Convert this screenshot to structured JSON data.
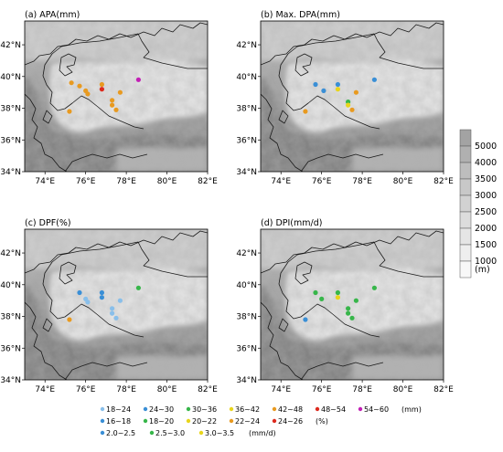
{
  "panels": [
    {
      "title": "(a) APA(mm)",
      "stations": [
        {
          "lon": 75.3,
          "lat": 39.6,
          "color": "#e89a20"
        },
        {
          "lon": 75.7,
          "lat": 39.4,
          "color": "#e89a20"
        },
        {
          "lon": 76.0,
          "lat": 39.1,
          "color": "#e89a20"
        },
        {
          "lon": 76.1,
          "lat": 38.9,
          "color": "#e89a20"
        },
        {
          "lon": 76.8,
          "lat": 39.5,
          "color": "#e89a20"
        },
        {
          "lon": 76.8,
          "lat": 39.2,
          "color": "#dd2a1e"
        },
        {
          "lon": 77.3,
          "lat": 38.5,
          "color": "#e89a20"
        },
        {
          "lon": 77.3,
          "lat": 38.2,
          "color": "#e89a20"
        },
        {
          "lon": 77.5,
          "lat": 37.9,
          "color": "#e89a20"
        },
        {
          "lon": 77.7,
          "lat": 39.0,
          "color": "#e89a20"
        },
        {
          "lon": 78.6,
          "lat": 39.8,
          "color": "#c21fb5"
        },
        {
          "lon": 75.2,
          "lat": 37.8,
          "color": "#e89a20"
        }
      ]
    },
    {
      "title": "(b) Max. DPA(mm)",
      "stations": [
        {
          "lon": 75.7,
          "lat": 39.5,
          "color": "#3a8fd6"
        },
        {
          "lon": 76.1,
          "lat": 39.1,
          "color": "#3a8fd6"
        },
        {
          "lon": 76.8,
          "lat": 39.5,
          "color": "#3a8fd6"
        },
        {
          "lon": 76.8,
          "lat": 39.2,
          "color": "#e8d51c"
        },
        {
          "lon": 77.3,
          "lat": 38.4,
          "color": "#37b64a"
        },
        {
          "lon": 77.3,
          "lat": 38.2,
          "color": "#e8d51c"
        },
        {
          "lon": 77.5,
          "lat": 37.9,
          "color": "#e89a20"
        },
        {
          "lon": 77.7,
          "lat": 39.0,
          "color": "#e89a20"
        },
        {
          "lon": 78.6,
          "lat": 39.8,
          "color": "#3a8fd6"
        },
        {
          "lon": 75.2,
          "lat": 37.8,
          "color": "#e89a20"
        }
      ]
    },
    {
      "title": "(c) DPF(%)",
      "stations": [
        {
          "lon": 75.7,
          "lat": 39.5,
          "color": "#3a8fd6"
        },
        {
          "lon": 76.0,
          "lat": 39.1,
          "color": "#89bfea"
        },
        {
          "lon": 76.1,
          "lat": 38.9,
          "color": "#89bfea"
        },
        {
          "lon": 76.8,
          "lat": 39.5,
          "color": "#3a8fd6"
        },
        {
          "lon": 76.8,
          "lat": 39.2,
          "color": "#3a8fd6"
        },
        {
          "lon": 77.3,
          "lat": 38.5,
          "color": "#89bfea"
        },
        {
          "lon": 77.3,
          "lat": 38.2,
          "color": "#89bfea"
        },
        {
          "lon": 77.5,
          "lat": 37.9,
          "color": "#89bfea"
        },
        {
          "lon": 77.7,
          "lat": 39.0,
          "color": "#89bfea"
        },
        {
          "lon": 78.6,
          "lat": 39.8,
          "color": "#37b64a"
        },
        {
          "lon": 75.2,
          "lat": 37.8,
          "color": "#e89a20"
        }
      ]
    },
    {
      "title": "(d) DPI(mm/d)",
      "stations": [
        {
          "lon": 75.7,
          "lat": 39.5,
          "color": "#37b64a"
        },
        {
          "lon": 76.0,
          "lat": 39.1,
          "color": "#37b64a"
        },
        {
          "lon": 76.8,
          "lat": 39.5,
          "color": "#37b64a"
        },
        {
          "lon": 76.8,
          "lat": 39.2,
          "color": "#e8d51c"
        },
        {
          "lon": 77.3,
          "lat": 38.5,
          "color": "#37b64a"
        },
        {
          "lon": 77.3,
          "lat": 38.2,
          "color": "#37b64a"
        },
        {
          "lon": 77.5,
          "lat": 37.9,
          "color": "#37b64a"
        },
        {
          "lon": 77.7,
          "lat": 39.0,
          "color": "#37b64a"
        },
        {
          "lon": 78.6,
          "lat": 39.8,
          "color": "#37b64a"
        },
        {
          "lon": 75.2,
          "lat": 37.8,
          "color": "#3a8fd6"
        }
      ]
    }
  ],
  "axes": {
    "lon_ticks": [
      "74°E",
      "76°E",
      "78°E",
      "80°E",
      "82°E"
    ],
    "lat_ticks": [
      "42°N",
      "40°N",
      "38°N",
      "36°N",
      "34°N"
    ]
  },
  "colorbar": {
    "labels": [
      "5000",
      "4000",
      "3500",
      "3000",
      "2500",
      "2000",
      "1500",
      "1000",
      "(m)"
    ],
    "colors": [
      "#a3a3a3",
      "#b0b0b0",
      "#bdbdbd",
      "#c8c8c8",
      "#d2d2d2",
      "#dcdcdc",
      "#e5e5e5",
      "#eeeeee",
      "#f8f8f8"
    ]
  },
  "legend": {
    "rows": [
      {
        "items": [
          {
            "color": "#89bfea",
            "label": "18~24"
          },
          {
            "color": "#3a8fd6",
            "label": "24~30"
          },
          {
            "color": "#37b64a",
            "label": "30~36"
          },
          {
            "color": "#e8d51c",
            "label": "36~42"
          },
          {
            "color": "#e89a20",
            "label": "42~48"
          },
          {
            "color": "#dd2a1e",
            "label": "48~54"
          },
          {
            "color": "#c21fb5",
            "label": "54~60"
          }
        ],
        "unit": "(mm)"
      },
      {
        "items": [
          {
            "color": "#3a8fd6",
            "label": "16~18"
          },
          {
            "color": "#37b64a",
            "label": "18~20"
          },
          {
            "color": "#e8d51c",
            "label": "20~22"
          },
          {
            "color": "#e89a20",
            "label": "22~24"
          },
          {
            "color": "#dd2a1e",
            "label": "24~26"
          }
        ],
        "unit": "(%)"
      },
      {
        "items": [
          {
            "color": "#3a8fd6",
            "label": "2.0~2.5"
          },
          {
            "color": "#37b64a",
            "label": "2.5~3.0"
          },
          {
            "color": "#e8d51c",
            "label": "3.0~3.5"
          }
        ],
        "unit": "(mm/d)"
      }
    ]
  }
}
